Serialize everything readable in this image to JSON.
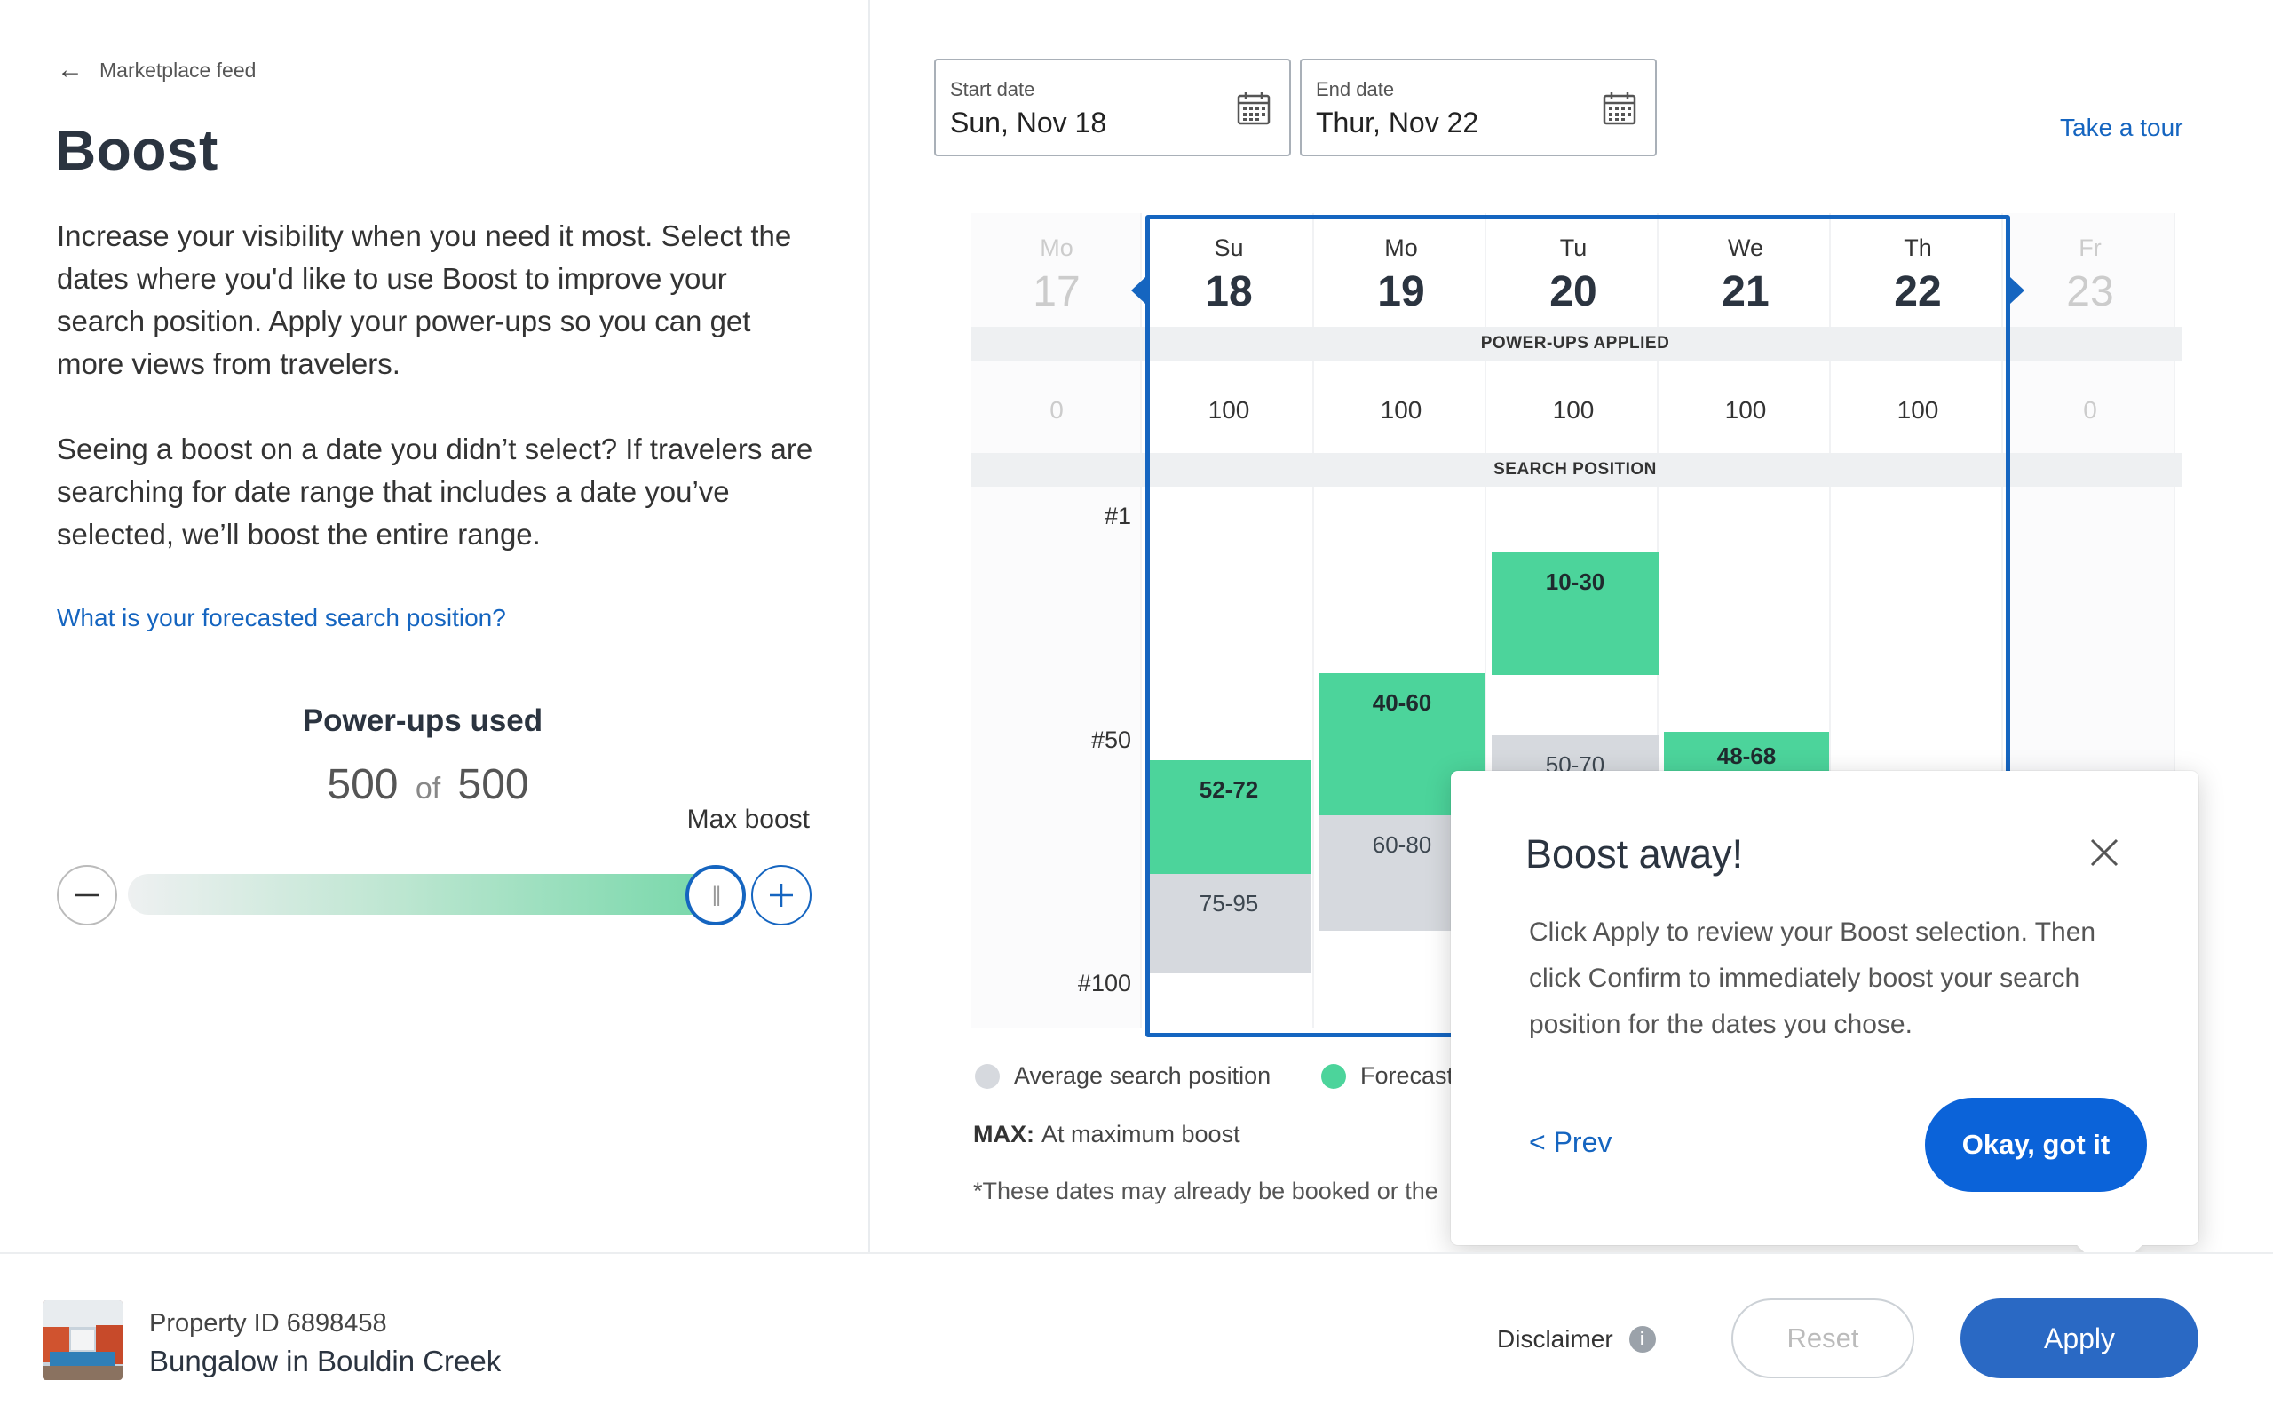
{
  "left": {
    "back_label": "Marketplace feed",
    "title": "Boost",
    "description_1": "Increase your visibility when you need it most. Select the dates where you'd like to use Boost to improve your search position. Apply your power-ups so you can get more views from travelers.",
    "description_2": "Seeing a boost on a date you didn’t select? If travelers are searching for date range that includes a date you’ve selected, we’ll boost the entire range.",
    "forecast_link": "What is your forecasted search position?",
    "powerups_title": "Power-ups used",
    "powerups_used": "500",
    "powerups_of": "of",
    "powerups_total": "500",
    "max_boost_label": "Max boost",
    "slider_fraction": 1.0
  },
  "dates": {
    "start_label": "Start date",
    "start_value": "Sun, Nov 18",
    "end_label": "End date",
    "end_value": "Thur, Nov 22"
  },
  "tour_link": "Take a tour",
  "calendar": {
    "days": [
      {
        "dow": "Mo",
        "date": "17",
        "powerups": "0",
        "selected": false
      },
      {
        "dow": "Su",
        "date": "18",
        "powerups": "100",
        "selected": true
      },
      {
        "dow": "Mo",
        "date": "19",
        "powerups": "100",
        "selected": true
      },
      {
        "dow": "Tu",
        "date": "20",
        "powerups": "100",
        "selected": true
      },
      {
        "dow": "We",
        "date": "21",
        "powerups": "100",
        "selected": true
      },
      {
        "dow": "Th",
        "date": "22",
        "powerups": "100",
        "selected": true
      },
      {
        "dow": "Fr",
        "date": "23",
        "powerups": "0",
        "selected": false
      }
    ],
    "band_powerups": "POWER-UPS APPLIED",
    "band_search": "SEARCH POSITION",
    "rank_labels": [
      "#1",
      "#50",
      "#100"
    ]
  },
  "chart_data": {
    "type": "bar",
    "categories": [
      "Su 18",
      "Mo 19",
      "Tu 20",
      "We 21",
      "Th 22"
    ],
    "series": [
      {
        "name": "Forecasted",
        "ranges": [
          "52-72",
          "40-60",
          "10-30",
          "48-68",
          null
        ]
      },
      {
        "name": "Average search position",
        "ranges": [
          "75-95",
          "60-80",
          "50-70",
          null,
          null
        ]
      }
    ]
  },
  "legend": {
    "average_label": "Average search position",
    "forecast_label": "Forecast",
    "average_color": "#d6d9de",
    "forecast_color": "#4cd49b"
  },
  "notes": {
    "max_key": "MAX:",
    "max_text": "At maximum boost",
    "dates_note": "*These dates may already be booked or the"
  },
  "popover": {
    "title": "Boost away!",
    "body": "Click Apply to review your Boost selection. Then click Confirm to immediately boost your search position for the dates you chose.",
    "prev_label": "< Prev",
    "ok_label": "Okay, got it"
  },
  "footer": {
    "property_id": "Property ID 6898458",
    "property_name": "Bungalow in Bouldin Creek",
    "disclaimer_label": "Disclaimer",
    "reset_label": "Reset",
    "apply_label": "Apply"
  },
  "colors": {
    "accent": "#1565c0",
    "primary_button": "#0b63d9",
    "apply_button": "#2a69c4",
    "forecast": "#4cd49b",
    "average": "#d6d9de"
  }
}
